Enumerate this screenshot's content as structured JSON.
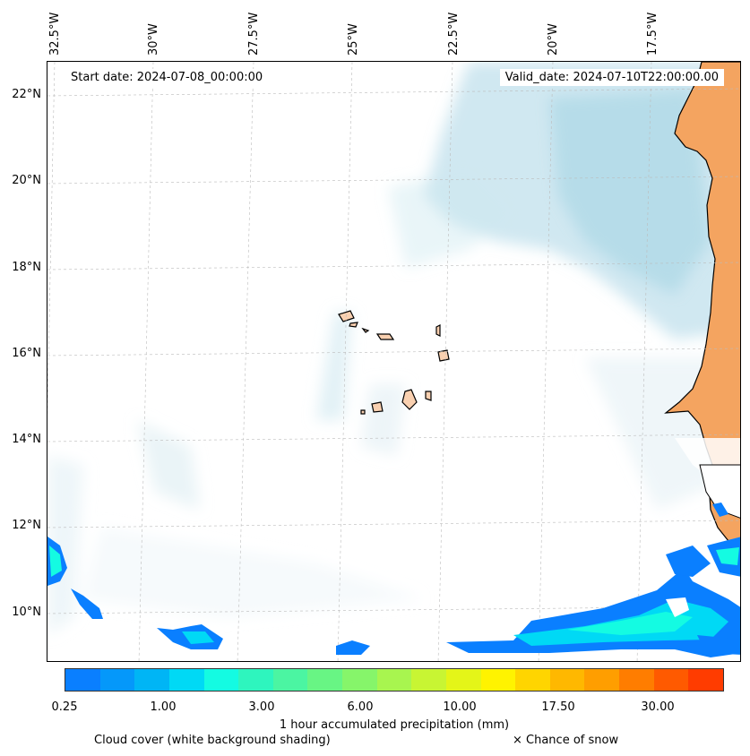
{
  "header": {
    "start_date": "Start date: 2024-07-08_00:00:00",
    "valid_date": "Valid_date: 2024-07-10T22:00:00.00"
  },
  "axes": {
    "longitude_labels": [
      "32.5°W",
      "30°W",
      "27.5°W",
      "25°W",
      "22.5°W",
      "20°W",
      "17.5°W"
    ],
    "latitude_labels": [
      "22°N",
      "20°N",
      "18°N",
      "16°N",
      "14°N",
      "12°N",
      "10°N"
    ]
  },
  "colorbar": {
    "label": "1 hour accumulated precipitation (mm)",
    "tick_labels": [
      "0.25",
      "1.00",
      "3.00",
      "6.00",
      "10.00",
      "17.50",
      "30.00"
    ],
    "colors": [
      "#0a7fff",
      "#0598fa",
      "#00b5f5",
      "#00d9f5",
      "#14fbe2",
      "#2ef5be",
      "#4bf5a2",
      "#68f584",
      "#86f56a",
      "#a8f54f",
      "#c8f533",
      "#e4f518",
      "#fff300",
      "#ffd500",
      "#ffb800",
      "#ff9e00",
      "#ff7d00",
      "#ff5a00",
      "#ff3c00"
    ]
  },
  "legend": {
    "cloud_cover": "Cloud cover (white background shading)",
    "snow": "× Chance of snow"
  },
  "colors": {
    "land": "#f4a460",
    "island_land": "#f9d0b0",
    "cloud_shading": "#a9d6e5",
    "precip_light": "#0a7fff",
    "precip_mid": "#00d9f5",
    "precip_high": "#14fbe2"
  }
}
